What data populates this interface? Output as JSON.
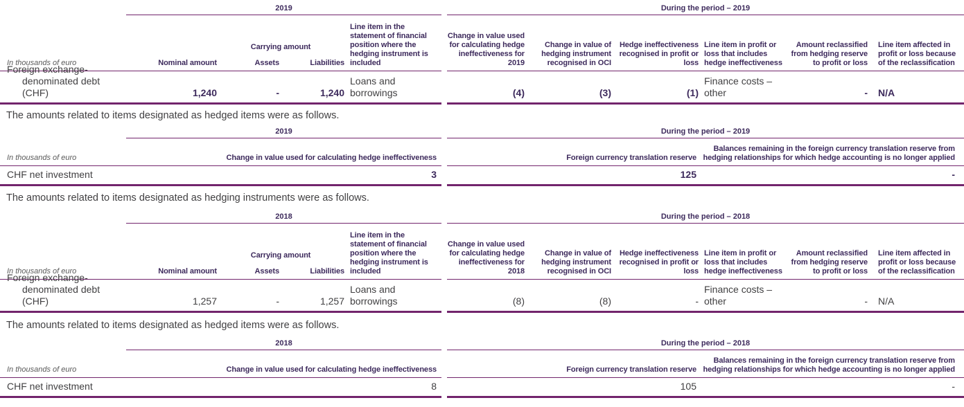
{
  "colors": {
    "rule_line": "#72246C",
    "header_text": "#3D2A5C",
    "body_text": "#414042"
  },
  "paragraphs": {
    "p1": "The amounts related to items designated as hedged items were as follows.",
    "p2": "The amounts related to items designated as hedging instruments were as follows.",
    "p3": "The amounts related to items designated as hedged items were as follows."
  },
  "instruments_2019": {
    "year": "2019",
    "period": "During the period – 2019",
    "unit": "In thousands of euro",
    "col_nominal": "Nominal amount",
    "col_carrying": "Carrying amount",
    "col_assets": "Assets",
    "col_liabilities": "Liabilities",
    "col_line_item_sofp": "Line item in the statement of financial position where the hedging instrument is included",
    "col_change_calc": "Change in value used for calculating hedge ineffectiveness for 2019",
    "col_change_oci": "Change in value of hedging instrument recognised in OCI",
    "col_ineffectiveness": "Hedge ineffectiveness recognised in profit or loss",
    "col_line_item_pl": "Line item in profit or loss that includes hedge ineffectiveness",
    "col_reclassified": "Amount reclassified from hedging reserve to profit or loss",
    "col_line_item_affected": "Line item affected in profit or loss because of the reclassification",
    "row": {
      "label_line1": "Foreign exchange-",
      "label_line2": "denominated debt (CHF)",
      "nominal": "1,240",
      "assets": "-",
      "liabilities": "1,240",
      "line_item_sofp": "Loans and borrowings",
      "change_calc": "(4)",
      "change_oci": "(3)",
      "ineffectiveness": "(1)",
      "line_item_pl": "Finance costs – other",
      "reclassified": "-",
      "line_item_affected": "N/A"
    }
  },
  "hedged_2019": {
    "year": "2019",
    "period": "During the period – 2019",
    "unit": "In thousands of euro",
    "col_change_calc": "Change in value used for calculating hedge ineffectiveness",
    "col_fctr": "Foreign currency translation reserve",
    "col_balances": "Balances remaining in the foreign currency translation reserve from hedging relationships for which hedge accounting is no longer applied",
    "row": {
      "label": "CHF net investment",
      "change_calc": "3",
      "fctr": "125",
      "balances": "-"
    }
  },
  "instruments_2018": {
    "year": "2018",
    "period": "During the period – 2018",
    "unit": "In thousands of euro",
    "col_nominal": "Nominal amount",
    "col_carrying": "Carrying amount",
    "col_assets": "Assets",
    "col_liabilities": "Liabilities",
    "col_line_item_sofp": "Line item in the statement of financial position where the hedging instrument is included",
    "col_change_calc": "Change in value used for calculating hedge ineffectiveness for 2018",
    "col_change_oci": "Change in value of hedging instrument recognised in OCI",
    "col_ineffectiveness": "Hedge ineffectiveness recognised in profit or loss",
    "col_line_item_pl": "Line item in profit or loss that includes hedge ineffectiveness",
    "col_reclassified": "Amount reclassified from hedging reserve to profit or loss",
    "col_line_item_affected": "Line item affected in profit or loss because of the reclassification",
    "row": {
      "label_line1": "Foreign exchange-",
      "label_line2": "denominated debt (CHF)",
      "nominal": "1,257",
      "assets": "-",
      "liabilities": "1,257",
      "line_item_sofp": "Loans and borrowings",
      "change_calc": "(8)",
      "change_oci": "(8)",
      "ineffectiveness": "-",
      "line_item_pl": "Finance costs – other",
      "reclassified": "-",
      "line_item_affected": "N/A"
    }
  },
  "hedged_2018": {
    "year": "2018",
    "period": "During the period – 2018",
    "unit": "In thousands of euro",
    "col_change_calc": "Change in value used for calculating hedge ineffectiveness",
    "col_fctr": "Foreign currency translation reserve",
    "col_balances": "Balances remaining in the foreign currency translation reserve from hedging relationships for which hedge accounting is no longer applied",
    "row": {
      "label": "CHF net investment",
      "change_calc": "8",
      "fctr": "105",
      "balances": "-"
    }
  }
}
